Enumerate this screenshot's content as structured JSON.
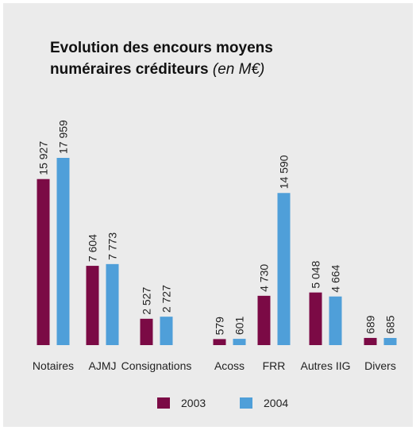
{
  "chart_data": {
    "type": "bar",
    "title": "Evolution des encours moyens numéraires créditeurs",
    "subtitle": "(en M€)",
    "categories": [
      "Notaires",
      "AJMJ",
      "Consignations",
      "Acoss",
      "FRR",
      "Autres IIG",
      "Divers"
    ],
    "series": [
      {
        "name": "2003",
        "color": "#7b0a45",
        "values": [
          15927,
          7604,
          2527,
          579,
          4730,
          5048,
          689
        ],
        "value_labels": [
          "15 927",
          "7 604",
          "2 527",
          "579",
          "4 730",
          "5 048",
          "689"
        ]
      },
      {
        "name": "2004",
        "color": "#4f9fd9",
        "values": [
          17959,
          7773,
          2727,
          601,
          14590,
          4664,
          685
        ],
        "value_labels": [
          "17 959",
          "7 773",
          "2 727",
          "601",
          "14 590",
          "4 664",
          "685"
        ]
      }
    ]
  }
}
